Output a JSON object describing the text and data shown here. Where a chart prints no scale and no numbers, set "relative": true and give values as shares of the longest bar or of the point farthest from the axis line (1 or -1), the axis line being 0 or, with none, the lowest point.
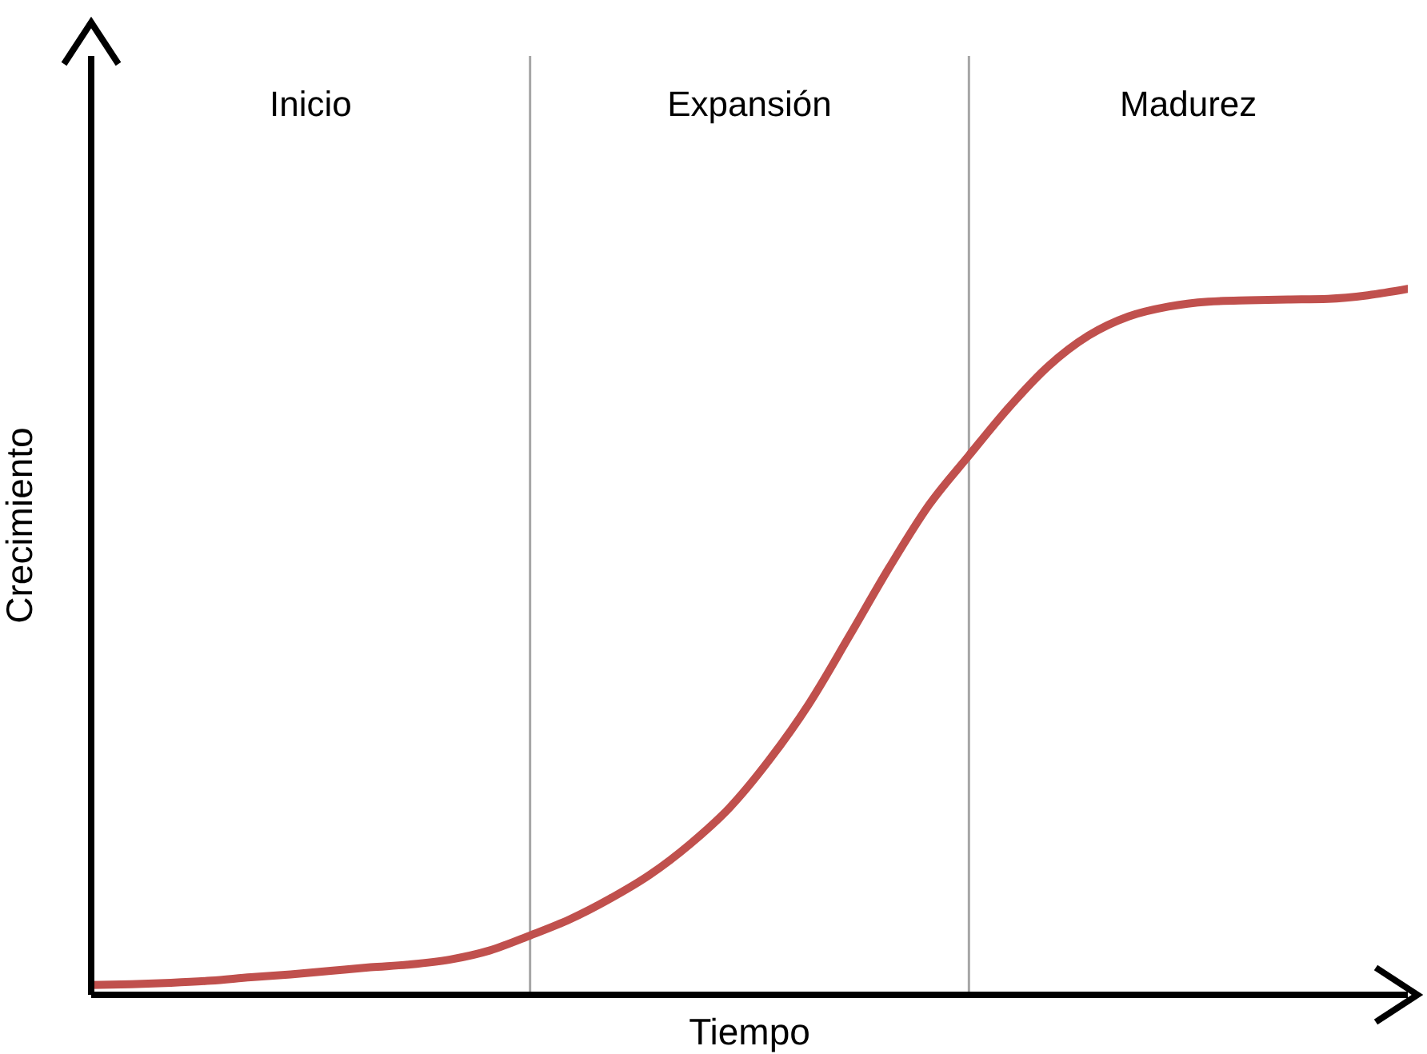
{
  "chart_data": {
    "type": "line",
    "relative": true,
    "xlabel": "Tiempo",
    "ylabel": "Crecimiento",
    "categories": [
      null,
      null,
      null,
      null,
      null,
      null,
      null,
      null,
      null,
      null,
      null,
      null,
      null,
      null,
      null,
      null,
      null,
      null,
      null,
      null,
      null,
      null,
      null,
      null,
      null,
      null,
      null,
      null,
      null,
      null,
      null,
      null,
      null,
      null
    ],
    "series": [
      {
        "color": "#c0504d",
        "values": [
          0.014,
          0.015,
          0.017,
          0.02,
          0.025,
          0.029,
          0.034,
          0.039,
          0.043,
          0.05,
          0.063,
          0.084,
          0.107,
          0.136,
          0.17,
          0.213,
          0.265,
          0.333,
          0.413,
          0.508,
          0.605,
          0.694,
          0.764,
          0.832,
          0.891,
          0.934,
          0.961,
          0.975,
          0.982,
          0.984,
          0.985,
          0.986,
          0.991,
          1
        ]
      }
    ],
    "annotations": [
      "Inicio",
      "Expansión",
      "Madurez"
    ],
    "grid": false,
    "legend": false,
    "marker": "none",
    "line_style": "solid"
  }
}
